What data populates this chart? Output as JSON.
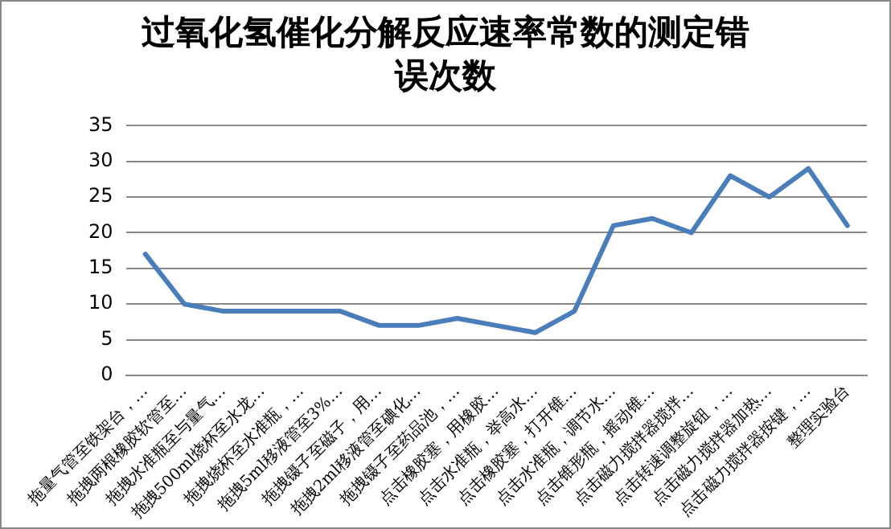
{
  "chart_data": {
    "type": "line",
    "title": "过氧化氢催化分解反应速率常数的测定错误次数",
    "categories": [
      "拖量气管至铁架台，…",
      "拖拽两根橡胶软管至…",
      "拖拽水准瓶至与量气…",
      "拖拽500ml烧杯至水龙…",
      "拖拽烧杯至水准瓶，…",
      "拖拽5ml移液管至3%…",
      "拖拽镊子至磁子，用…",
      "拖拽2ml移液管至碘化…",
      "拖拽镊子至药品池，…",
      "点击橡胶塞，用橡胶…",
      "点击水准瓶，举高水…",
      "点击橡胶塞，打开锥…",
      "点击水准瓶，调节水…",
      "点击锥形瓶，摇动锥…",
      "点击磁力搅拌器搅拌…",
      "点击转速调整旋钮，…",
      "点击磁力搅拌器加热…",
      "点击磁力搅拌器按键，…",
      "整理实验台"
    ],
    "series": [
      {
        "color": "#4a7ebb",
        "values": [
          17,
          10,
          9,
          9,
          9,
          9,
          7,
          7,
          8,
          7,
          6,
          9,
          21,
          22,
          20,
          28,
          25,
          29,
          21
        ]
      }
    ],
    "ylim": [
      0,
      35
    ],
    "yticks": [
      0,
      5,
      10,
      15,
      20,
      25,
      30,
      35
    ],
    "grid": "y",
    "legend": false,
    "marker": "none",
    "line_style": "solid"
  }
}
